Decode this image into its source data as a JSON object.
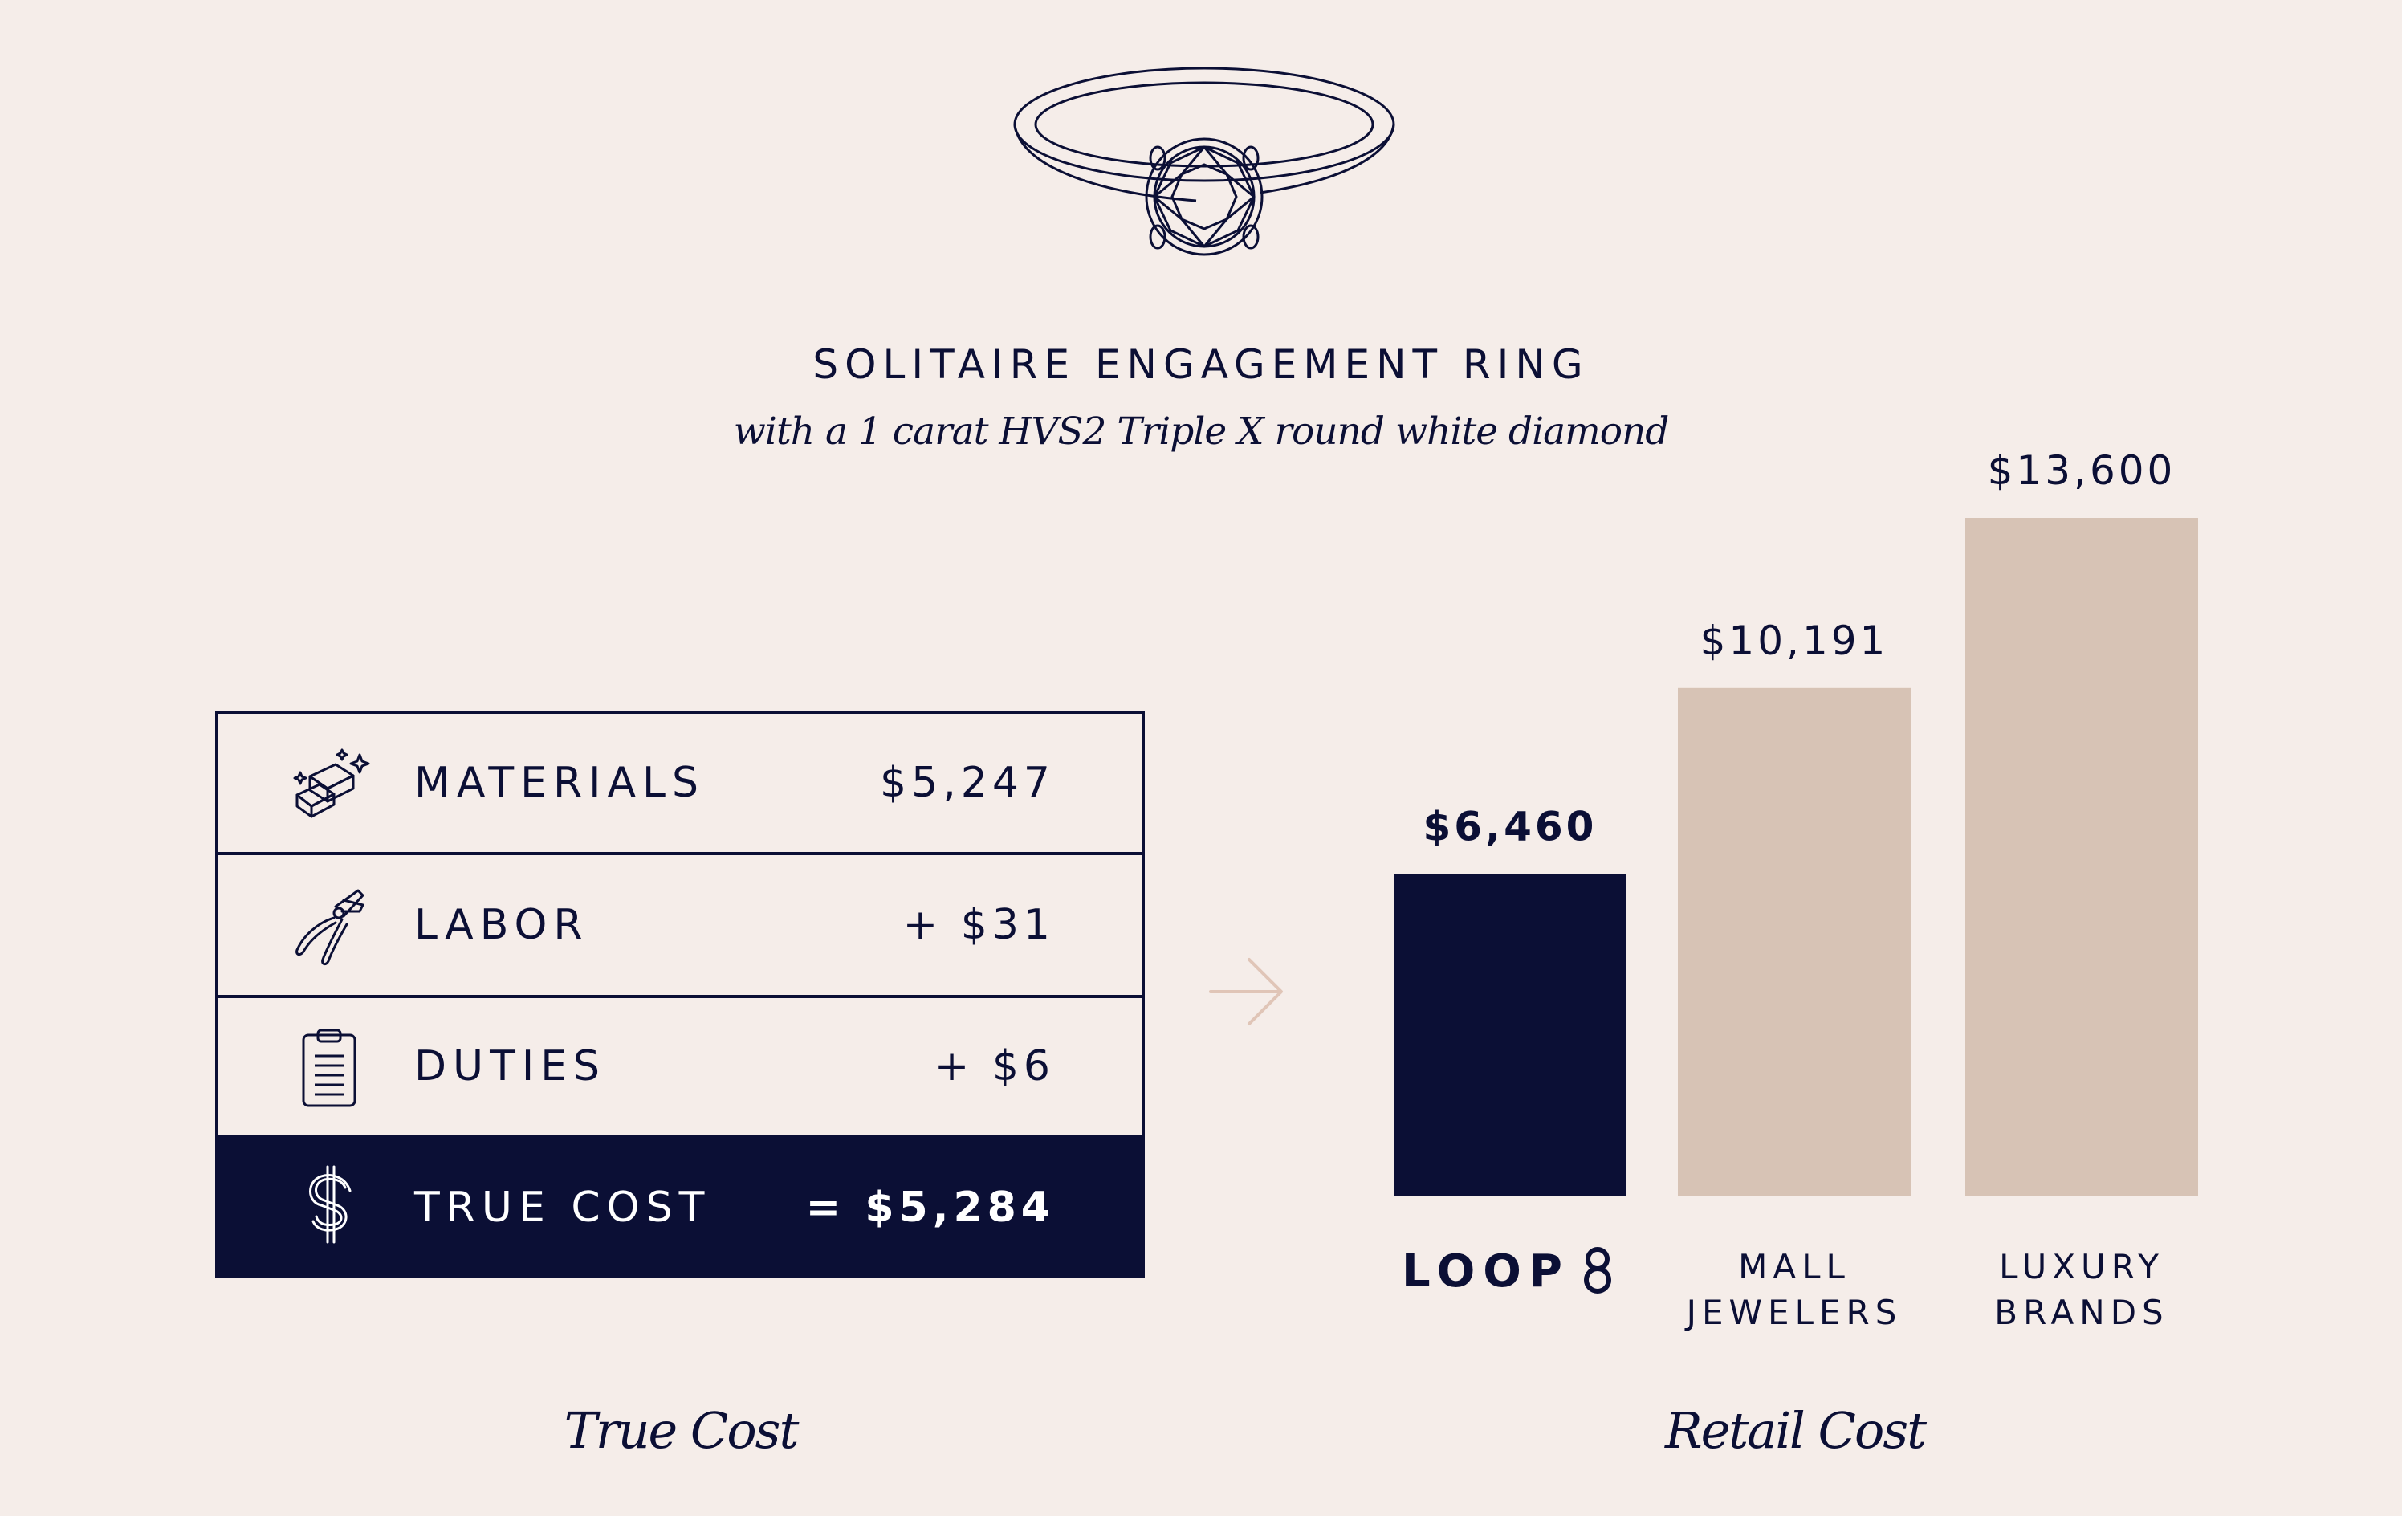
{
  "header": {
    "title": "SOLITAIRE ENGAGEMENT RING",
    "subtitle": "with a 1 carat HVS2 Triple X round white diamond"
  },
  "cost_table": {
    "rows": [
      {
        "icon": "gold-bars-icon",
        "label": "MATERIALS",
        "value": "$5,247"
      },
      {
        "icon": "pliers-icon",
        "label": "LABOR",
        "value": "+ $31"
      },
      {
        "icon": "clipboard-icon",
        "label": "DUTIES",
        "value": "+ $6"
      },
      {
        "icon": "dollar-icon",
        "label": "TRUE COST",
        "value": "= $5,284"
      }
    ]
  },
  "captions": {
    "left": "True Cost",
    "right": "Retail Cost"
  },
  "colors": {
    "background": "#f5ede9",
    "navy": "#0b0f35",
    "beige": "#d7c3b5",
    "arrow": "#e0c5b7"
  },
  "chart_data": {
    "type": "bar",
    "categories": [
      "LOOP",
      "MALL JEWELERS",
      "LUXURY BRANDS"
    ],
    "category_lines": [
      [
        "LOOP"
      ],
      [
        "MALL",
        "JEWELERS"
      ],
      [
        "LUXURY",
        "BRANDS"
      ]
    ],
    "values": [
      6460,
      10191,
      13600
    ],
    "value_labels": [
      "$6,460",
      "$10,191",
      "$13,600"
    ],
    "colors": [
      "#0b0f35",
      "#d7c3b5",
      "#d7c3b5"
    ],
    "highlight": "LOOP",
    "ylim": [
      0,
      13600
    ],
    "grid": false
  }
}
